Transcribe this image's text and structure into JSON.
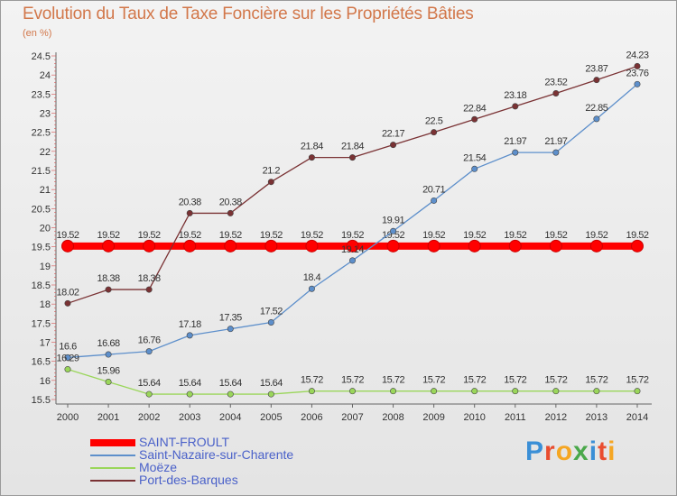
{
  "chart_data": {
    "type": "line",
    "title": "Evolution du Taux de Taxe Foncière sur les Propriétés Bâties",
    "subtitle": "(en %)",
    "categories": [
      "2000",
      "2001",
      "2002",
      "2003",
      "2004",
      "2005",
      "2006",
      "2007",
      "2008",
      "2009",
      "2010",
      "2011",
      "2012",
      "2013",
      "2014"
    ],
    "ylim": [
      15.5,
      24.5
    ],
    "yticks": [
      "15.5",
      "16",
      "16.5",
      "17",
      "17.5",
      "18",
      "18.5",
      "19",
      "19.5",
      "20",
      "20.5",
      "21",
      "21.5",
      "22",
      "22.5",
      "23",
      "23.5",
      "24",
      "24.5"
    ],
    "grid": false,
    "series": [
      {
        "name": "SAINT-FROULT",
        "color": "#ff0000",
        "values": [
          19.52,
          19.52,
          19.52,
          19.52,
          19.52,
          19.52,
          19.52,
          19.52,
          19.52,
          19.52,
          19.52,
          19.52,
          19.52,
          19.52,
          19.52
        ],
        "labels": [
          "19.52",
          "19.52",
          "19.52",
          "19.52",
          "19.52",
          "19.52",
          "19.52",
          "19.52",
          "19.52",
          "19.52",
          "19.52",
          "19.52",
          "19.52",
          "19.52",
          "19.52"
        ]
      },
      {
        "name": "Saint-Nazaire-sur-Charente",
        "color": "#5d8fcb",
        "values": [
          16.6,
          16.68,
          16.76,
          17.18,
          17.35,
          17.52,
          18.4,
          19.14,
          19.91,
          20.71,
          21.54,
          21.97,
          21.97,
          22.85,
          23.76
        ],
        "labels": [
          "16.6",
          "16.68",
          "16.76",
          "17.18",
          "17.35",
          "17.52",
          "18.4",
          "19.14",
          "19.91",
          "20.71",
          "21.54",
          "21.97",
          "21.97",
          "22.85",
          "23.76"
        ]
      },
      {
        "name": "Moëze",
        "color": "#9ad65a",
        "values": [
          16.29,
          15.96,
          15.64,
          15.64,
          15.64,
          15.64,
          15.72,
          15.72,
          15.72,
          15.72,
          15.72,
          15.72,
          15.72,
          15.72,
          15.72
        ],
        "labels": [
          "16.29",
          "15.96",
          "15.64",
          "15.64",
          "15.64",
          "15.64",
          "15.72",
          "15.72",
          "15.72",
          "15.72",
          "15.72",
          "15.72",
          "15.72",
          "15.72",
          "15.72"
        ]
      },
      {
        "name": "Port-des-Barques",
        "color": "#7a3234",
        "values": [
          18.02,
          18.38,
          18.38,
          20.38,
          20.38,
          21.2,
          21.84,
          21.84,
          22.17,
          22.5,
          22.84,
          23.18,
          23.52,
          23.87,
          24.23
        ],
        "labels": [
          "18.02",
          "18.38",
          "18.38",
          "20.38",
          "20.38",
          "21.2",
          "21.84",
          "21.84",
          "22.17",
          "22.5",
          "22.84",
          "23.18",
          "23.52",
          "23.87",
          "24.23"
        ]
      }
    ]
  },
  "legend": {
    "items": [
      {
        "label": "SAINT-FROULT",
        "color": "#ff0000"
      },
      {
        "label": "Saint-Nazaire-sur-Charente",
        "color": "#5d8fcb"
      },
      {
        "label": "Moëze",
        "color": "#9ad65a"
      },
      {
        "label": "Port-des-Barques",
        "color": "#7a3234"
      }
    ]
  },
  "brand": {
    "letters": [
      "P",
      "r",
      "o",
      "x",
      "i",
      "t",
      "i"
    ],
    "colors": [
      "#3b8fd6",
      "#e94d2f",
      "#f5a623",
      "#4aa84a",
      "#3b8fd6",
      "#e94d2f",
      "#f5a623"
    ]
  }
}
